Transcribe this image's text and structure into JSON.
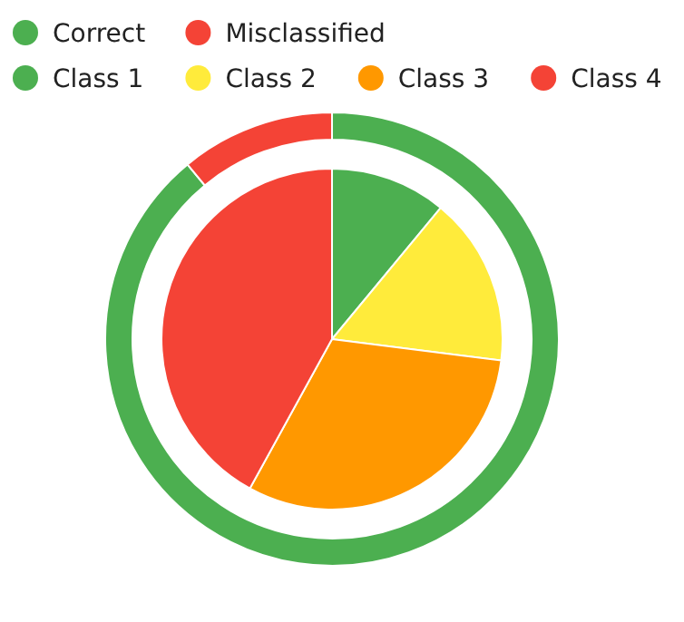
{
  "chart_data": [
    {
      "type": "donut",
      "categories": [
        "Correct",
        "Misclassified"
      ],
      "values": [
        89,
        11
      ],
      "colors": [
        "#4caf50",
        "#f44336"
      ],
      "legend": "top"
    },
    {
      "type": "pie",
      "categories": [
        "Class 1",
        "Class 2",
        "Class 3",
        "Class 4"
      ],
      "values": [
        11,
        16,
        31,
        42
      ],
      "colors": [
        "#4caf50",
        "#ffeb3b",
        "#ff9800",
        "#f44336"
      ],
      "legend": "top"
    }
  ]
}
